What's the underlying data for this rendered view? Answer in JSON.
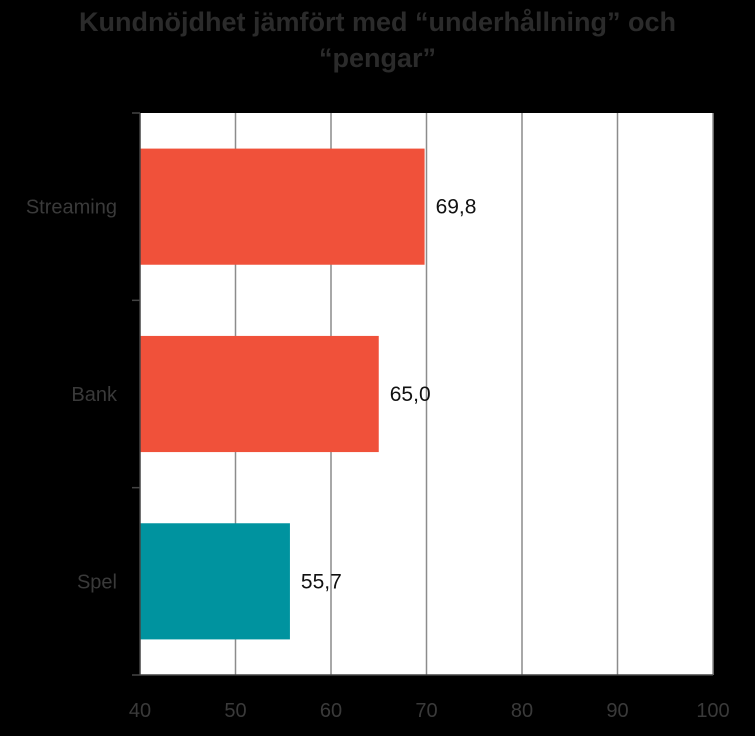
{
  "chart_data": {
    "type": "bar",
    "orientation": "horizontal",
    "title_lines": [
      "Kundnöjdhet jämfört med “underhållning” och",
      "“pengar”"
    ],
    "categories": [
      "Streaming",
      "Bank",
      "Spel"
    ],
    "values": [
      69.8,
      65.0,
      55.7
    ],
    "value_labels": [
      "69,8",
      "65,0",
      "55,7"
    ],
    "bar_colors": [
      "#F0513A",
      "#F0513A",
      "#00939F"
    ],
    "xlim": [
      40,
      100
    ],
    "x_ticks": [
      40,
      50,
      60,
      70,
      80,
      90,
      100
    ],
    "x_tick_labels": [
      "40",
      "50",
      "60",
      "70",
      "80",
      "90",
      "100"
    ],
    "grid": true,
    "legend": "none",
    "colors": {
      "background": "#000000",
      "plot_area": "#FFFFFF",
      "gridline": "#8C8C8C"
    }
  }
}
